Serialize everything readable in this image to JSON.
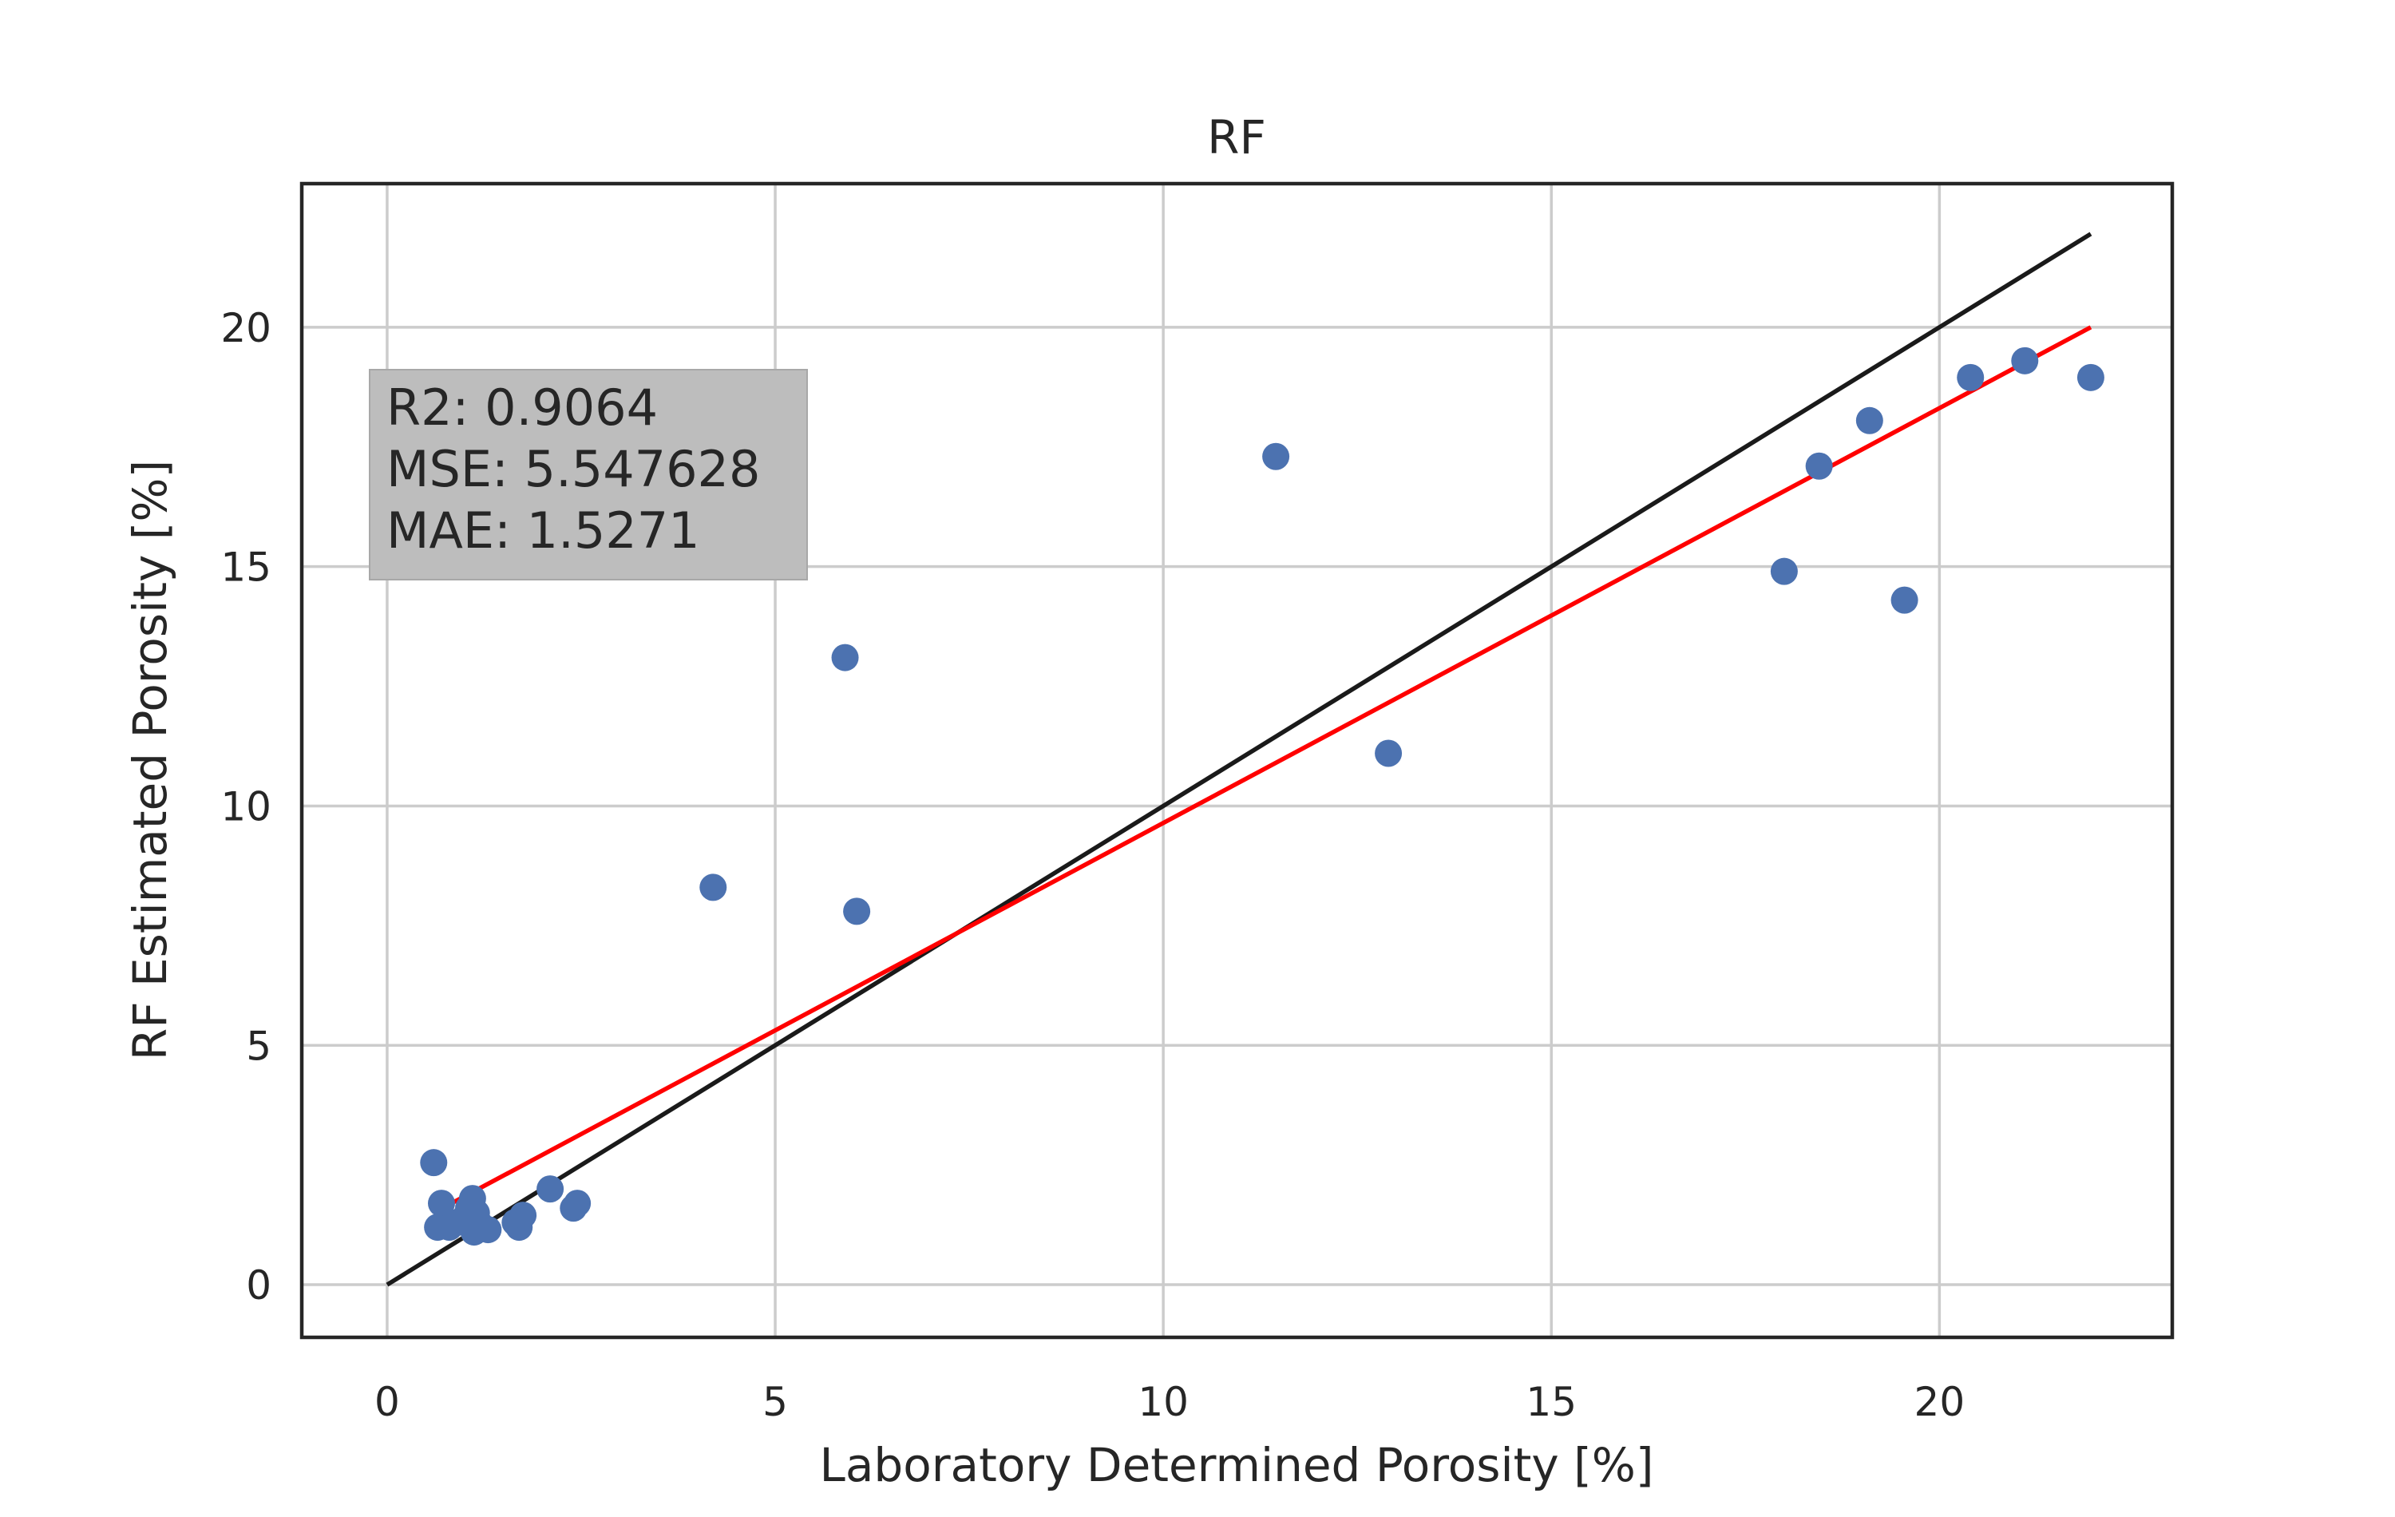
{
  "chart_data": {
    "type": "scatter",
    "title": "RF",
    "xlabel": "Laboratory Determined Porosity [%]",
    "ylabel": "RF Estimated Porosity [%]",
    "xlim": [
      -1.1,
      23.0
    ],
    "ylim": [
      -1.1,
      23.0
    ],
    "xticks": [
      "0",
      "5",
      "10",
      "15",
      "20"
    ],
    "yticks": [
      "0",
      "5",
      "10",
      "15",
      "20"
    ],
    "grid": true,
    "stats_box": {
      "lines": [
        "R2: 0.9064",
        "MSE: 5.547628",
        "MAE: 1.5271"
      ],
      "position": "top-left"
    },
    "series": [
      {
        "kind": "points",
        "color": "#4c72b0",
        "x": [
          0.6,
          0.65,
          0.7,
          0.8,
          0.9,
          1.0,
          1.05,
          1.1,
          1.12,
          1.15,
          1.2,
          1.3,
          1.65,
          1.7,
          1.75,
          2.1,
          2.4,
          2.45,
          4.2,
          5.9,
          6.05,
          11.45,
          12.9,
          18.0,
          18.45,
          19.1,
          19.55,
          20.4,
          21.1,
          21.95
        ],
        "y": [
          2.55,
          1.2,
          1.7,
          1.2,
          1.3,
          1.4,
          1.6,
          1.8,
          1.1,
          1.5,
          1.25,
          1.15,
          1.3,
          1.2,
          1.45,
          2.0,
          1.6,
          1.7,
          8.3,
          13.1,
          7.8,
          17.3,
          11.1,
          14.9,
          17.1,
          18.05,
          14.3,
          18.95,
          19.3,
          18.95
        ]
      },
      {
        "kind": "line",
        "color": "#1a1a1a",
        "x": [
          0,
          21.95
        ],
        "y": [
          0,
          21.95
        ]
      },
      {
        "kind": "line",
        "color": "#ff0000",
        "x": [
          0.6,
          21.95
        ],
        "y": [
          1.5,
          20.0
        ]
      }
    ]
  }
}
